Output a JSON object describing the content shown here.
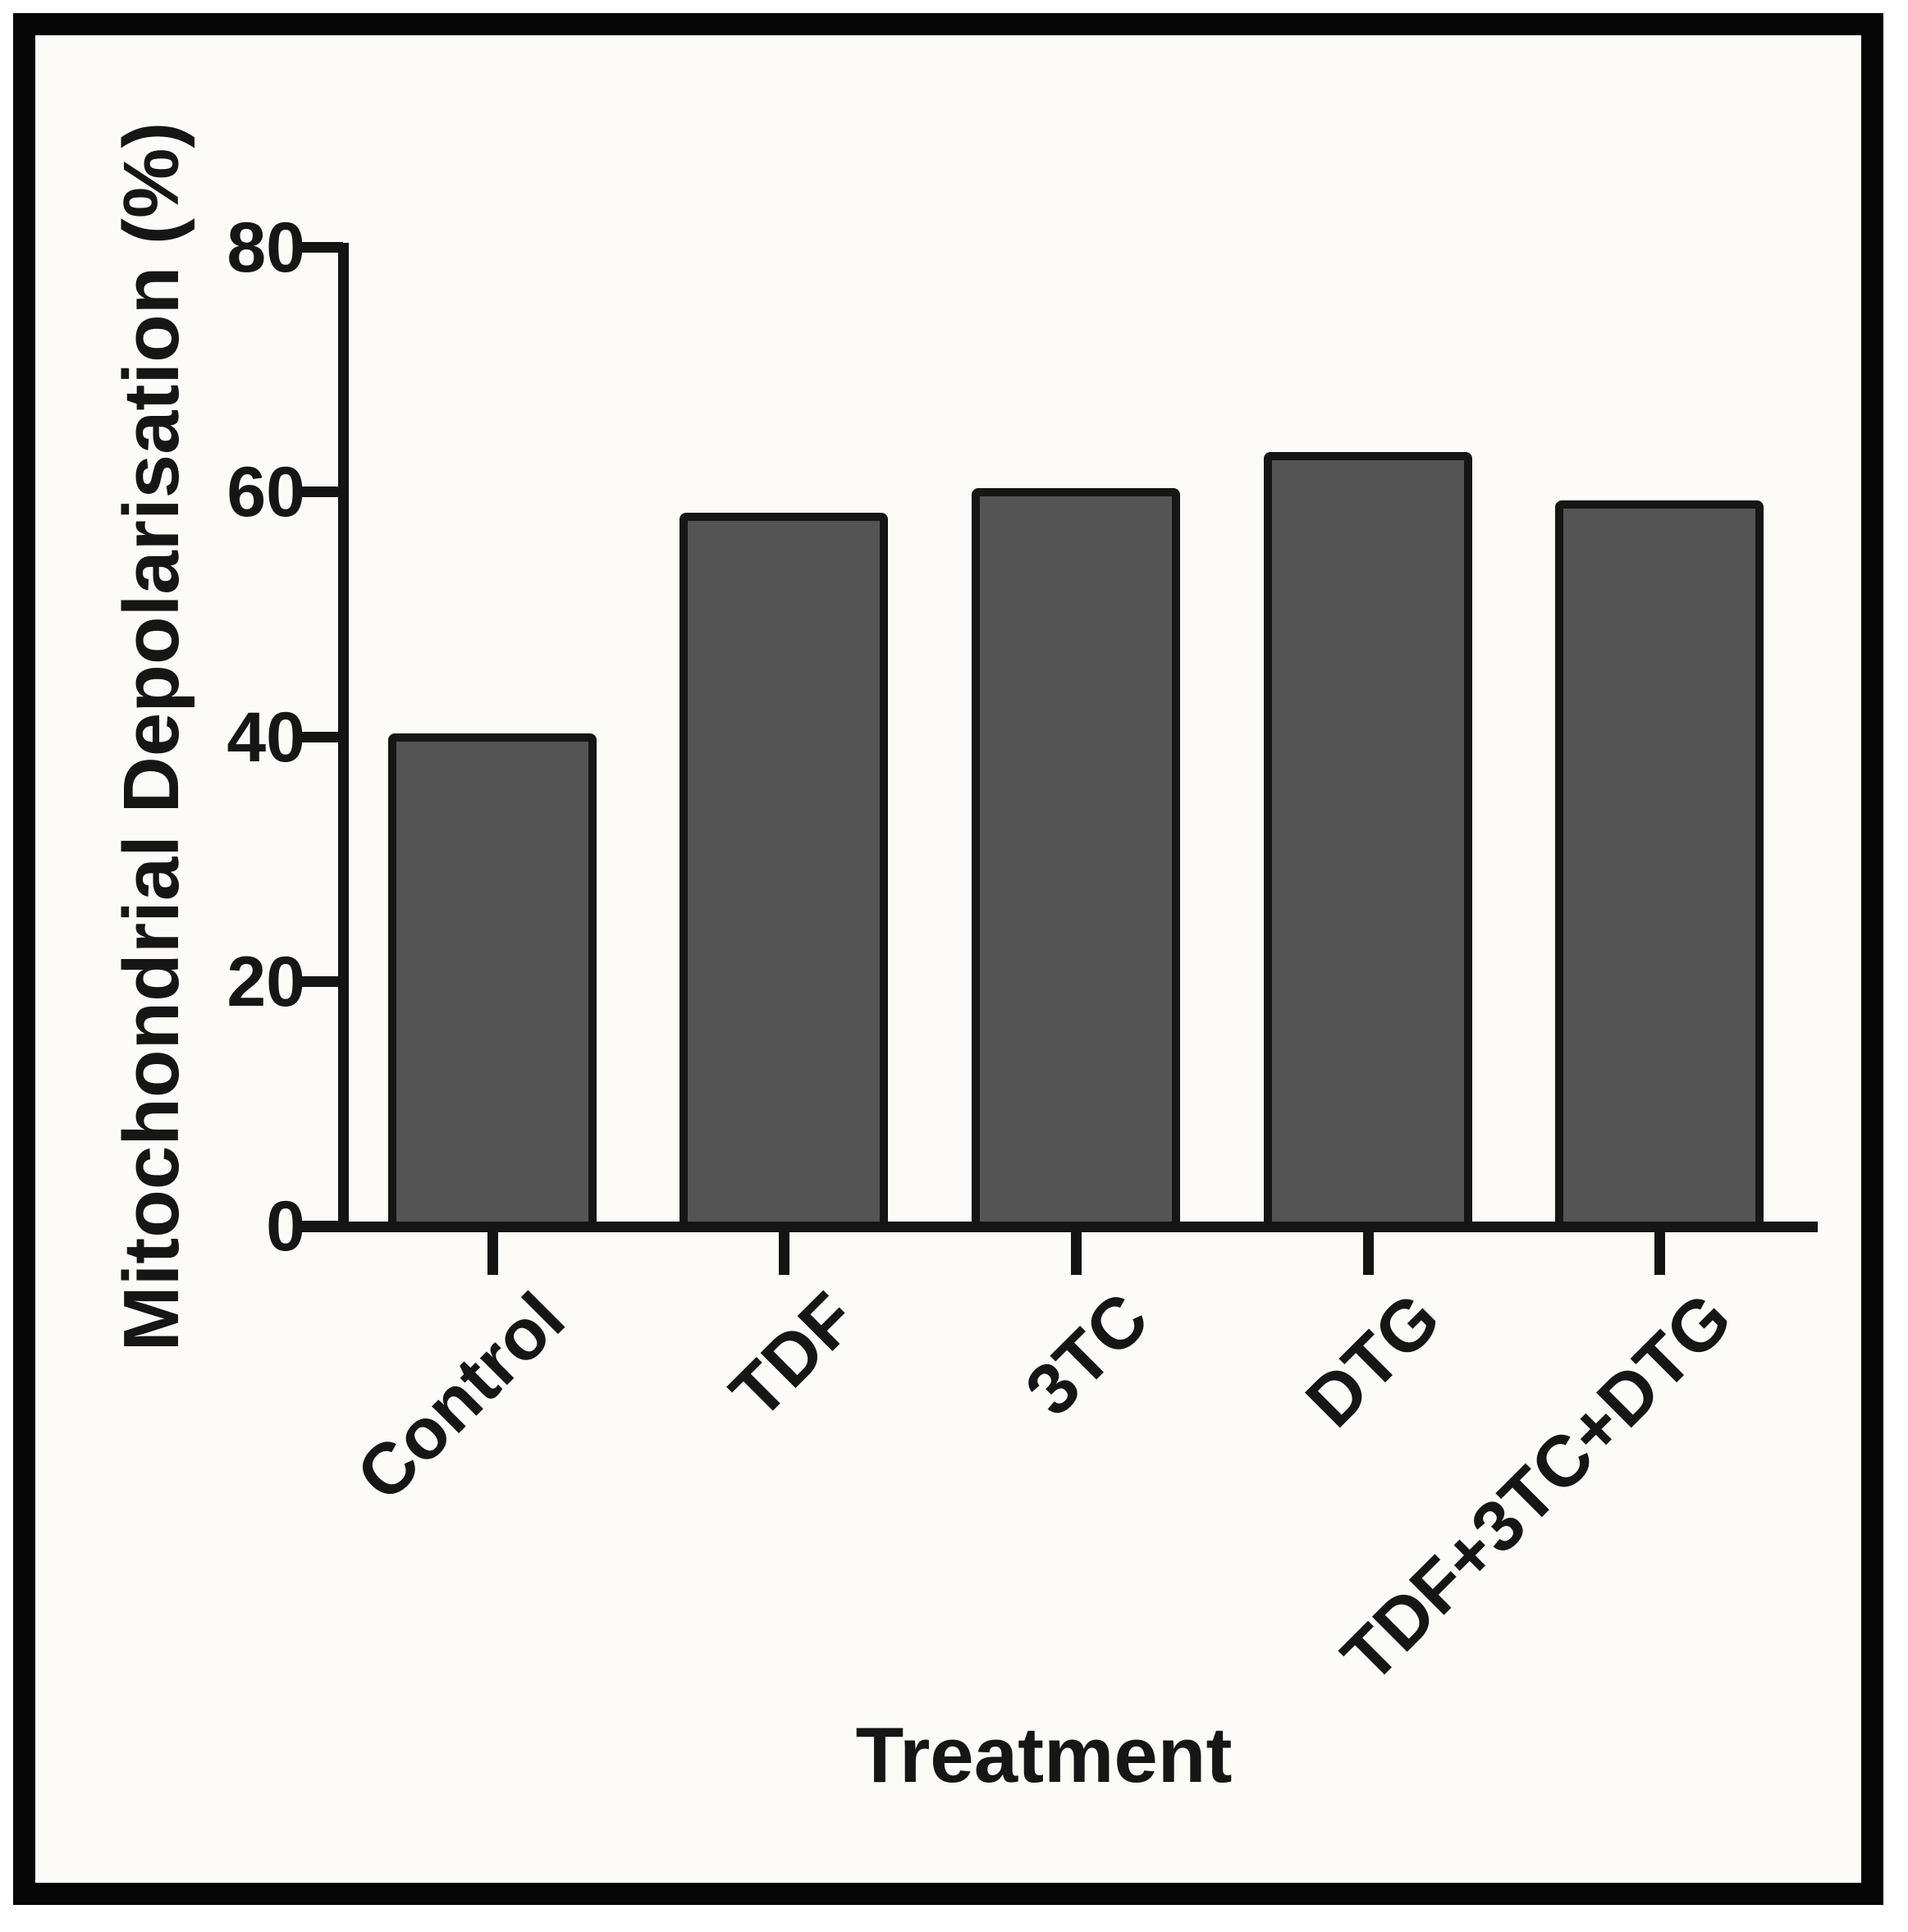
{
  "figure": {
    "background_color": "#fcfbf7",
    "frame_color": "#050505"
  },
  "chart_data": {
    "type": "bar",
    "title": "",
    "categories": [
      "Control",
      "TDF",
      "3TC",
      "DTG",
      "TDF+3TC+DTG"
    ],
    "values": [
      40,
      58,
      60,
      63,
      59
    ],
    "xlabel": "Treatment",
    "ylabel": "Mitochondrial Depolarisation (%)",
    "ylim": [
      0,
      80
    ],
    "yticks": [
      0,
      20,
      40,
      60,
      80
    ],
    "grid": false,
    "legend": false,
    "bar_fill_color": "#545454",
    "bar_outline_color": "#161616",
    "axis_color": "#141414",
    "category_label_rotation_deg": -45
  }
}
